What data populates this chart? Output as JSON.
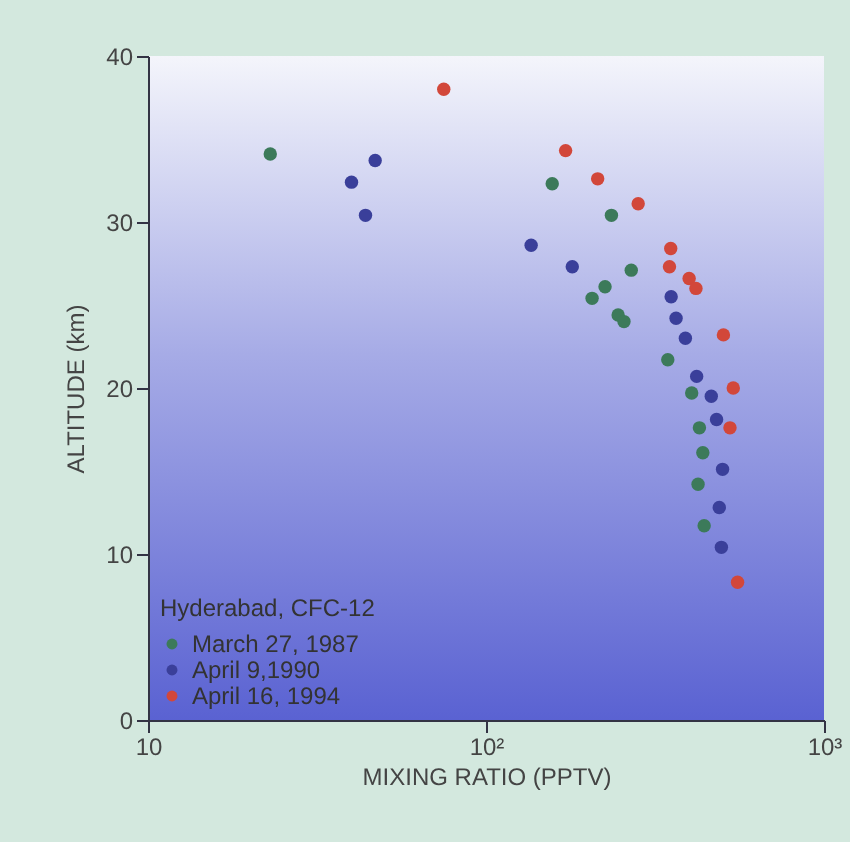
{
  "chart_data": {
    "type": "scatter",
    "xlabel": "MIXING RATIO (PPTV)",
    "ylabel": "ALTITUDE (km)",
    "legend_title": "Hyderabad, CFC-12",
    "log": "x",
    "xlim": [
      10,
      1000
    ],
    "xticks": [
      10,
      {
        "value": 100,
        "label": "10²"
      },
      {
        "value": 1000,
        "label": "10³"
      }
    ],
    "ylim": [
      0,
      40
    ],
    "yticks": [
      0,
      10,
      20,
      30,
      40
    ],
    "grid": false,
    "legend": "bottom left",
    "marker": "circle",
    "series": [
      {
        "name": "March 27, 1987",
        "color": "#3c7a5a",
        "x": [
          23,
          157,
          235,
          269,
          225,
          206,
          246,
          256,
          345,
          406,
          428,
          438,
          424,
          442
        ],
        "values": [
          34.1,
          32.3,
          30.4,
          27.1,
          26.1,
          25.4,
          24.4,
          24.0,
          21.7,
          19.7,
          17.6,
          16.1,
          14.2,
          11.7
        ]
      },
      {
        "name": "April  9,1990",
        "color": "#3a3f9a",
        "x": [
          47,
          40,
          44,
          136,
          180,
          353,
          365,
          389,
          420,
          464,
          481,
          501,
          490,
          497
        ],
        "values": [
          33.7,
          32.4,
          30.4,
          28.6,
          27.3,
          25.5,
          24.2,
          23.0,
          20.7,
          19.5,
          18.1,
          15.1,
          12.8,
          10.4
        ]
      },
      {
        "name": "April 16, 1994",
        "color": "#d2473a",
        "x": [
          75,
          172,
          214,
          282,
          352,
          349,
          399,
          418,
          504,
          539,
          527,
          555
        ],
        "values": [
          38,
          34.3,
          32.6,
          31.1,
          28.4,
          27.3,
          26.6,
          26.0,
          23.2,
          20.0,
          17.6,
          8.3
        ]
      }
    ]
  }
}
